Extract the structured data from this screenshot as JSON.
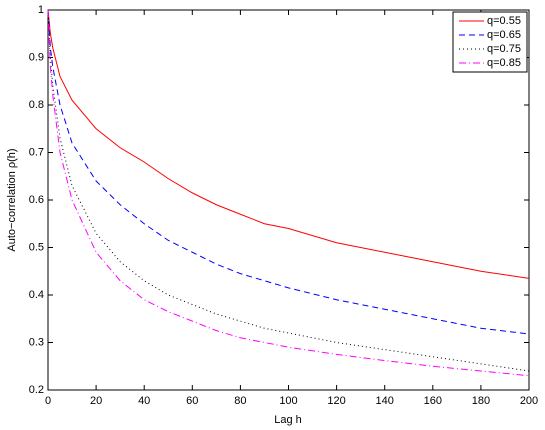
{
  "chart_data": {
    "type": "line",
    "x_label": "Lag h",
    "y_label": "Auto−correlation ρ(h)",
    "x": [
      0,
      1,
      2,
      5,
      10,
      20,
      30,
      40,
      50,
      60,
      70,
      80,
      90,
      100,
      120,
      140,
      160,
      180,
      200
    ],
    "series": [
      {
        "name": "q=0.55",
        "color": "#ff0000",
        "line_style": "solid",
        "values": [
          1,
          0.95,
          0.92,
          0.86,
          0.81,
          0.75,
          0.71,
          0.68,
          0.645,
          0.615,
          0.59,
          0.57,
          0.55,
          0.54,
          0.51,
          0.49,
          0.47,
          0.45,
          0.435
        ]
      },
      {
        "name": "q=0.65",
        "color": "#0000ff",
        "line_style": "dashed",
        "values": [
          1,
          0.92,
          0.88,
          0.8,
          0.72,
          0.64,
          0.59,
          0.55,
          0.515,
          0.49,
          0.465,
          0.445,
          0.43,
          0.415,
          0.39,
          0.37,
          0.35,
          0.33,
          0.318
        ]
      },
      {
        "name": "q=0.75",
        "color": "#000000",
        "line_style": "dotted",
        "values": [
          1,
          0.9,
          0.84,
          0.73,
          0.63,
          0.53,
          0.47,
          0.43,
          0.4,
          0.38,
          0.36,
          0.345,
          0.33,
          0.32,
          0.3,
          0.285,
          0.27,
          0.255,
          0.24
        ]
      },
      {
        "name": "q=0.85",
        "color": "#ff00ff",
        "line_style": "dashdot",
        "values": [
          1,
          0.88,
          0.82,
          0.7,
          0.6,
          0.49,
          0.43,
          0.39,
          0.365,
          0.345,
          0.325,
          0.31,
          0.3,
          0.29,
          0.275,
          0.262,
          0.25,
          0.24,
          0.23
        ]
      }
    ],
    "xlim": [
      0,
      200
    ],
    "xticks": [
      0,
      20,
      40,
      60,
      80,
      100,
      120,
      140,
      160,
      180,
      200
    ],
    "ylim": [
      0.2,
      1
    ],
    "yticks": [
      0.2,
      0.3,
      0.4,
      0.5,
      0.6,
      0.7,
      0.8,
      0.9,
      1
    ],
    "grid": false,
    "legend_position": "upper-right"
  }
}
